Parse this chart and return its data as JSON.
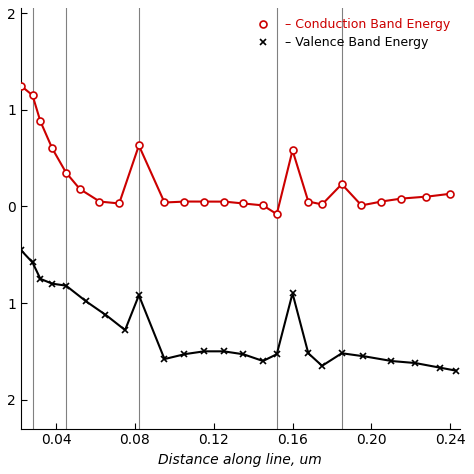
{
  "title": "",
  "xlabel": "Distance along line, um",
  "ylabel": "",
  "xlim": [
    0.022,
    0.245
  ],
  "ylim": [
    -2.3,
    2.05
  ],
  "yticks": [
    2,
    1,
    0,
    -1,
    -2
  ],
  "ytick_labels": [
    "2",
    "1",
    "0",
    "1",
    "2"
  ],
  "xticks": [
    0.04,
    0.08,
    0.12,
    0.16,
    0.2,
    0.24
  ],
  "vertical_lines": [
    0.028,
    0.045,
    0.082,
    0.152,
    0.185
  ],
  "conduction_x": [
    0.022,
    0.028,
    0.032,
    0.038,
    0.045,
    0.052,
    0.062,
    0.072,
    0.082,
    0.095,
    0.105,
    0.115,
    0.125,
    0.135,
    0.145,
    0.152,
    0.16,
    0.168,
    0.175,
    0.185,
    0.195,
    0.205,
    0.215,
    0.228,
    0.24
  ],
  "conduction_y": [
    1.25,
    1.15,
    0.88,
    0.6,
    0.35,
    0.18,
    0.05,
    0.03,
    0.63,
    0.04,
    0.05,
    0.05,
    0.05,
    0.03,
    0.01,
    -0.08,
    0.58,
    0.05,
    0.02,
    0.23,
    0.01,
    0.05,
    0.08,
    0.1,
    0.13
  ],
  "valence_x": [
    0.022,
    0.028,
    0.032,
    0.038,
    0.045,
    0.055,
    0.065,
    0.075,
    0.082,
    0.095,
    0.105,
    0.115,
    0.125,
    0.135,
    0.145,
    0.152,
    0.16,
    0.168,
    0.175,
    0.185,
    0.196,
    0.21,
    0.222,
    0.235,
    0.243
  ],
  "valence_y": [
    -0.45,
    -0.58,
    -0.75,
    -0.8,
    -0.82,
    -0.98,
    -1.12,
    -1.28,
    -0.92,
    -1.58,
    -1.53,
    -1.5,
    -1.5,
    -1.53,
    -1.6,
    -1.53,
    -0.9,
    -1.52,
    -1.65,
    -1.52,
    -1.55,
    -1.6,
    -1.62,
    -1.67,
    -1.7
  ],
  "conduction_color": "#cc0000",
  "valence_color": "#000000",
  "background_color": "#ffffff",
  "legend_conduction": "– Conduction Band Energy",
  "legend_valence": "– Valence Band Energy",
  "conduction_marker": "o",
  "valence_marker": "x",
  "linewidth": 1.5,
  "markersize": 5,
  "marker_linewidth": 1.2
}
